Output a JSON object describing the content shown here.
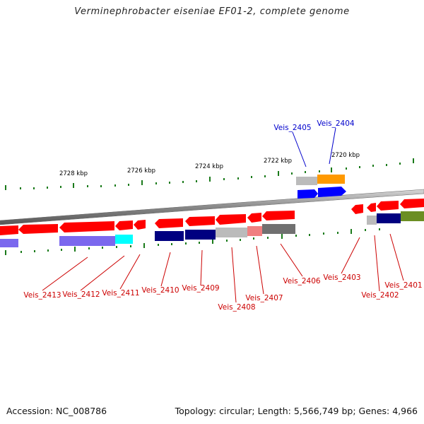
{
  "title": "Verminephrobacter eiseniae EF01-2, complete genome",
  "footer": {
    "accession": "Accession: NC_008786",
    "summary": "Topology: circular; Length: 5,566,749 bp; Genes: 4,966"
  },
  "scale_labels": [
    "2728 kbp",
    "2726 kbp",
    "2724 kbp",
    "2722 kbp",
    "2720 kbp"
  ],
  "genes_top": [
    {
      "name": "Veis_2405",
      "color": "#0000cc"
    },
    {
      "name": "Veis_2404",
      "color": "#0000cc"
    }
  ],
  "genes_bottom": [
    {
      "name": "Veis_2413",
      "color": "#cc0000"
    },
    {
      "name": "Veis_2412",
      "color": "#cc0000"
    },
    {
      "name": "Veis_2411",
      "color": "#cc0000"
    },
    {
      "name": "Veis_2410",
      "color": "#cc0000"
    },
    {
      "name": "Veis_2409",
      "color": "#cc0000"
    },
    {
      "name": "Veis_2408",
      "color": "#cc0000"
    },
    {
      "name": "Veis_2407",
      "color": "#cc0000"
    },
    {
      "name": "Veis_2406",
      "color": "#cc0000"
    },
    {
      "name": "Veis_2403",
      "color": "#cc0000"
    },
    {
      "name": "Veis_2402",
      "color": "#cc0000"
    },
    {
      "name": "Veis_2401",
      "color": "#cc0000"
    }
  ],
  "colors": {
    "backbone": "#888888",
    "tick": "#1a7a1a",
    "forward_cds": "#ff0000",
    "navy": "#000080",
    "blue": "#0000ff",
    "lavender": "#7b68ee",
    "cyan": "#00ffff",
    "orange": "#ff9900",
    "olive": "#6b8e23",
    "light_grey": "#bbbbbb",
    "dark_grey": "#707070",
    "salmon": "#f08080"
  }
}
